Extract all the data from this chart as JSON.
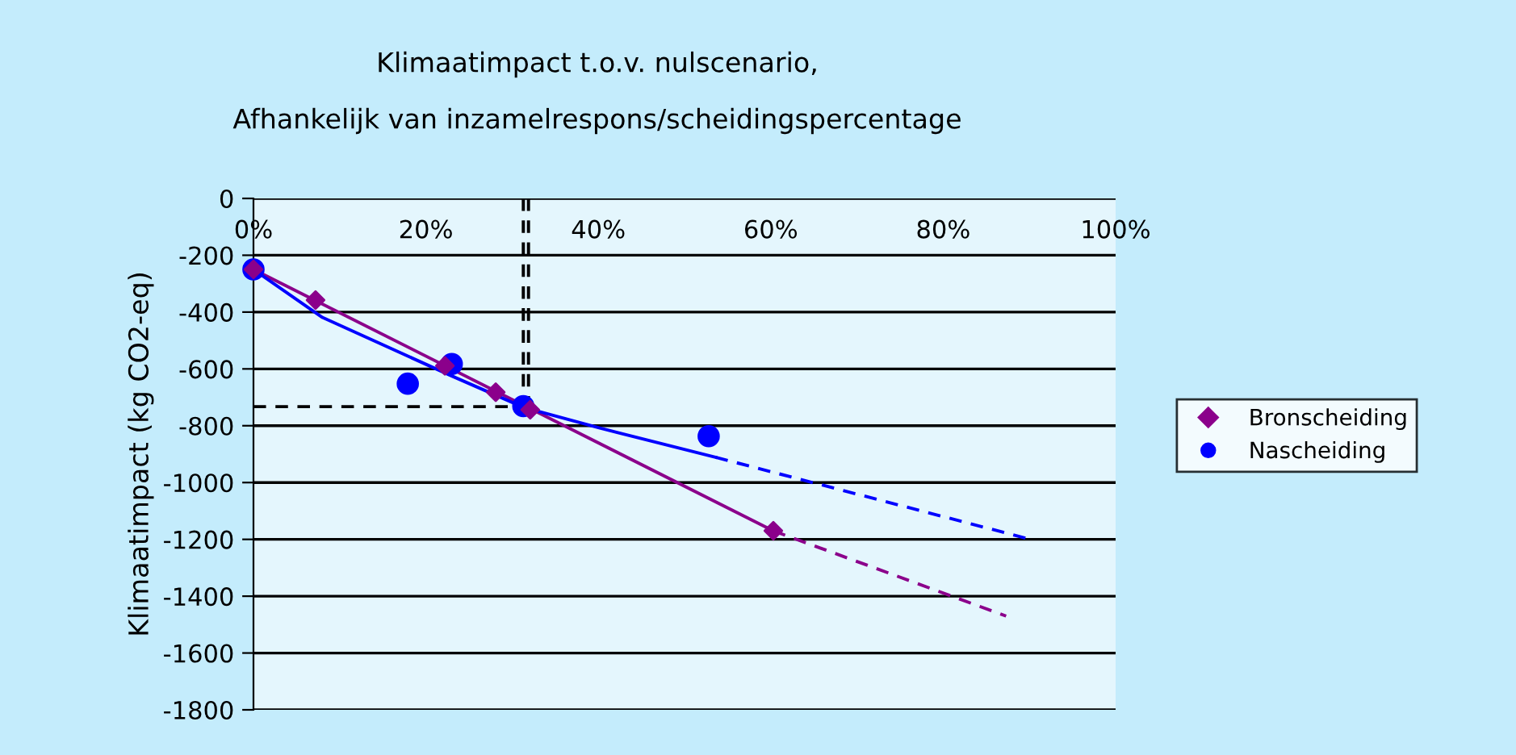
{
  "chart_data": {
    "type": "scatter",
    "title": "Klimaatimpact t.o.v. nulscenario,",
    "subtitle": "Afhankelijk van inzamelrespons/scheidingspercentage",
    "ylabel": "Klimaatimpact (kg CO2-eq)",
    "xlim": [
      0,
      100
    ],
    "xticks": [
      {
        "value": 0,
        "label": "0%"
      },
      {
        "value": 20,
        "label": "20%"
      },
      {
        "value": 40,
        "label": "40%"
      },
      {
        "value": 60,
        "label": "60%"
      },
      {
        "value": 80,
        "label": "80%"
      },
      {
        "value": 100,
        "label": "100%"
      }
    ],
    "ylim": [
      -1800,
      0
    ],
    "yticks": [
      -1800,
      -1600,
      -1400,
      -1200,
      -1000,
      -800,
      -600,
      -400,
      -200,
      0
    ],
    "grid": "y",
    "legend": "right",
    "series": [
      {
        "name": "Bronscheiding",
        "marker": "diamond",
        "color": "#8b008b",
        "x": [
          0,
          7.2,
          22.2,
          28.1,
          32.1,
          60.3
        ],
        "values": [
          -250,
          -358,
          -589,
          -682,
          -744,
          -1170
        ]
      },
      {
        "name": "Nascheiding",
        "marker": "circle",
        "color": "#0000ff",
        "x": [
          0,
          17.9,
          23.0,
          31.3,
          52.8
        ],
        "values": [
          -250,
          -652,
          -583,
          -731,
          -837
        ]
      },
      {
        "type": "line",
        "color": "#8b008b",
        "line_style": "solid",
        "x": [
          0,
          60.3
        ],
        "values": [
          -250,
          -1170
        ]
      },
      {
        "type": "line",
        "color": "#8b008b",
        "line_style": "dashed",
        "x": [
          60.3,
          87.3
        ],
        "values": [
          -1170,
          -1470
        ]
      },
      {
        "type": "line",
        "color": "#0000ff",
        "line_style": "solid",
        "x": [
          0,
          8,
          23,
          31.3,
          40,
          53.6
        ],
        "values": [
          -250,
          -419,
          -625,
          -735,
          -807,
          -911
        ]
      },
      {
        "type": "line",
        "color": "#0000ff",
        "line_style": "dashed",
        "x": [
          53.6,
          90
        ],
        "values": [
          -911,
          -1199
        ]
      },
      {
        "type": "line",
        "color": "#000000",
        "line_style": "dashed",
        "x": [
          31.3,
          31.3
        ],
        "values": [
          0,
          -733
        ]
      },
      {
        "type": "line",
        "color": "#000000",
        "line_style": "dashed",
        "x": [
          31.9,
          31.9
        ],
        "values": [
          0,
          -733
        ]
      },
      {
        "type": "line",
        "color": "#000000",
        "line_style": "dashed",
        "x": [
          0,
          31.3
        ],
        "values": [
          -733,
          -733
        ]
      }
    ]
  }
}
